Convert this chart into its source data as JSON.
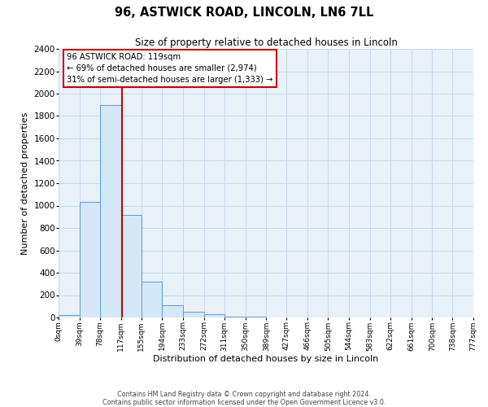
{
  "title": "96, ASTWICK ROAD, LINCOLN, LN6 7LL",
  "subtitle": "Size of property relative to detached houses in Lincoln",
  "xlabel": "Distribution of detached houses by size in Lincoln",
  "ylabel": "Number of detached properties",
  "bin_edges": [
    0,
    39,
    78,
    117,
    155,
    194,
    233,
    272,
    311,
    350,
    389,
    427,
    466,
    505,
    544,
    583,
    622,
    661,
    700,
    738,
    777
  ],
  "bar_heights": [
    20,
    1030,
    1900,
    920,
    320,
    110,
    50,
    30,
    10,
    5,
    2,
    0,
    0,
    0,
    0,
    0,
    0,
    0,
    0,
    0
  ],
  "bar_color": "#d4e8f7",
  "bar_edge_color": "#5b9bd5",
  "property_size": 119,
  "red_line_color": "#cc0000",
  "annotation_text_line1": "96 ASTWICK ROAD: 119sqm",
  "annotation_text_line2": "← 69% of detached houses are smaller (2,974)",
  "annotation_text_line3": "31% of semi-detached houses are larger (1,333) →",
  "annotation_box_color": "#ffffff",
  "annotation_box_edge": "#cc0000",
  "ylim": [
    0,
    2400
  ],
  "yticks": [
    0,
    200,
    400,
    600,
    800,
    1000,
    1200,
    1400,
    1600,
    1800,
    2000,
    2200,
    2400
  ],
  "footer_line1": "Contains HM Land Registry data © Crown copyright and database right 2024.",
  "footer_line2": "Contains public sector information licensed under the Open Government Licence v3.0.",
  "grid_color": "#c8d8e8",
  "background_color": "#e8f0f8",
  "fig_bg": "#ffffff"
}
